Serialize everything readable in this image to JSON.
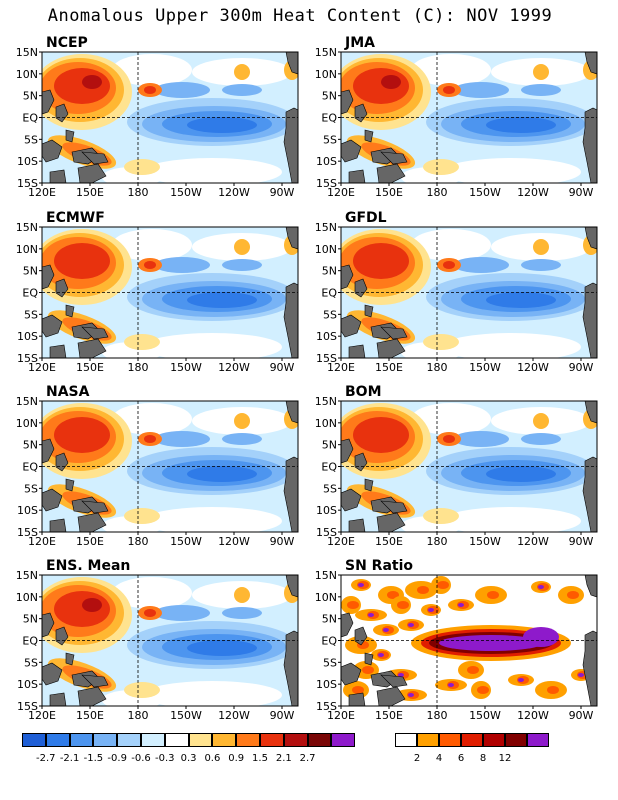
{
  "title": "Anomalous Upper 300m Heat Content (C): NOV 1999",
  "lat_labels": [
    "15N",
    "10N",
    "5N",
    "EQ",
    "5S",
    "10S",
    "15S"
  ],
  "lon_labels": [
    "120E",
    "150E",
    "180",
    "150W",
    "120W",
    "90W"
  ],
  "panels": [
    {
      "name": "NCEP",
      "type": "anomaly"
    },
    {
      "name": "JMA",
      "type": "anomaly"
    },
    {
      "name": "ECMWF",
      "type": "anomaly"
    },
    {
      "name": "GFDL",
      "type": "anomaly"
    },
    {
      "name": "NASA",
      "type": "anomaly"
    },
    {
      "name": "BOM",
      "type": "anomaly"
    },
    {
      "name": "ENS. Mean",
      "type": "anomaly"
    },
    {
      "name": "SN Ratio",
      "type": "snr"
    }
  ],
  "colorbars": {
    "anomaly": {
      "colors": [
        "#1f5fd6",
        "#2f7be8",
        "#4d95ef",
        "#78b3f5",
        "#a4d1fa",
        "#d2efff",
        "#ffffff",
        "#ffe38f",
        "#ffb732",
        "#ff7a1a",
        "#e8320e",
        "#b30f0f",
        "#7a0707",
        "#8e1acb"
      ],
      "labels": [
        "-2.7",
        "-2.1",
        "-1.5",
        "-0.9",
        "-0.6",
        "-0.3",
        "0.3",
        "0.6",
        "0.9",
        "1.5",
        "2.1",
        "2.7"
      ]
    },
    "snr": {
      "colors": [
        "#ffffff",
        "#ffa000",
        "#ff5a00",
        "#e01d00",
        "#b00000",
        "#800000",
        "#8e1acb"
      ],
      "labels": [
        "2",
        "4",
        "6",
        "8",
        "12"
      ]
    }
  },
  "land_color": "#666666"
}
